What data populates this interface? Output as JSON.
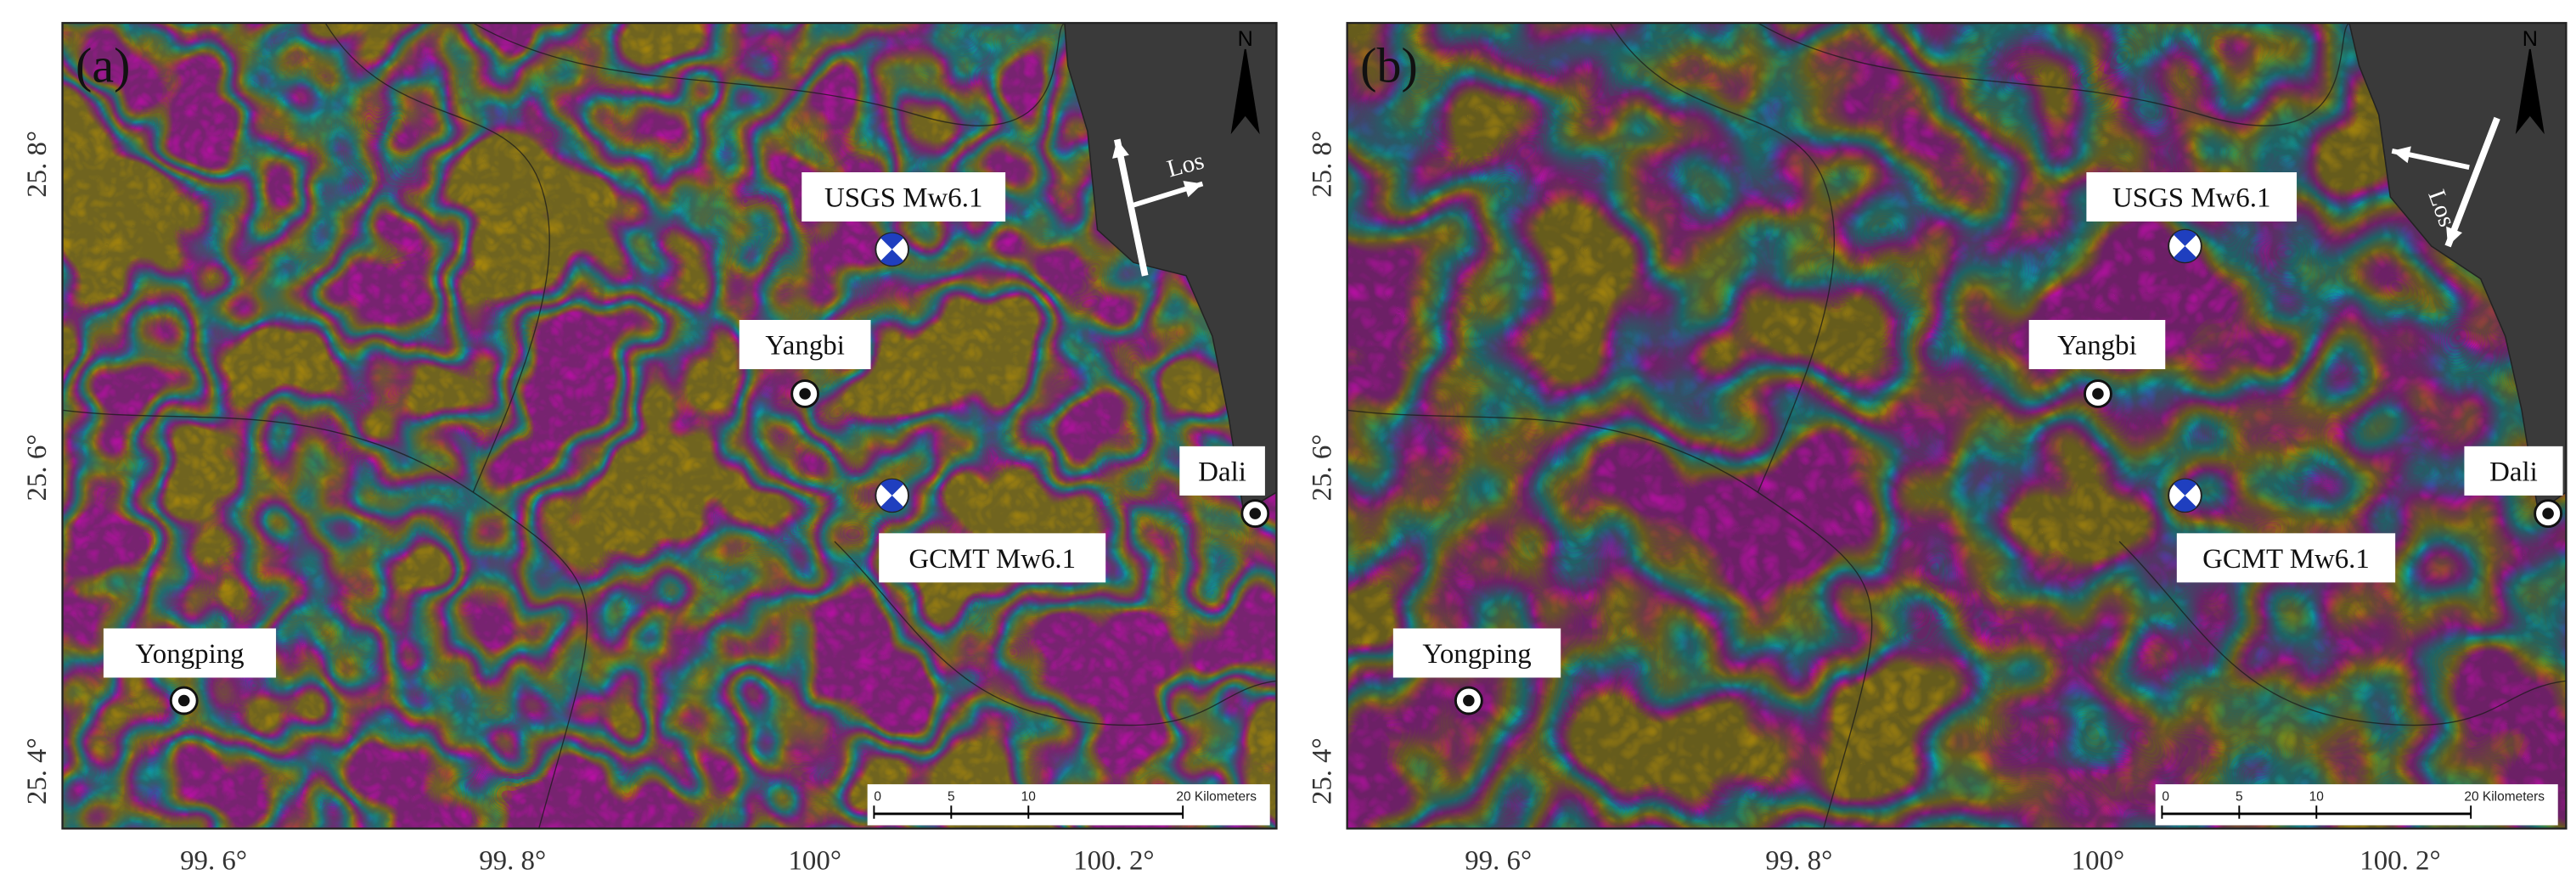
{
  "panels": [
    {
      "label": "(a)",
      "north": "N",
      "los": "Los",
      "places": [
        "USGS Mw6.1",
        "Yangbi",
        "Dali",
        "GCMT Mw6.1",
        "Yongping"
      ],
      "scale_bar": [
        "0",
        "5",
        "10",
        "20 Kilometers"
      ],
      "x_ticks": [
        "99. 6°",
        "99. 8°",
        "100°",
        "100. 2°"
      ],
      "y_ticks": [
        "25. 8°",
        "25. 6°",
        "25. 4°"
      ]
    },
    {
      "label": "(b)",
      "north": "N",
      "los": "Los",
      "places": [
        "USGS Mw6.1",
        "Yangbi",
        "Dali",
        "GCMT Mw6.1",
        "Yongping"
      ],
      "scale_bar": [
        "0",
        "5",
        "10",
        "20 Kilometers"
      ],
      "x_ticks": [
        "99. 6°",
        "99. 8°",
        "100°",
        "100. 2°"
      ],
      "y_ticks": [
        "25. 8°",
        "25. 6°",
        "25. 4°"
      ]
    }
  ]
}
